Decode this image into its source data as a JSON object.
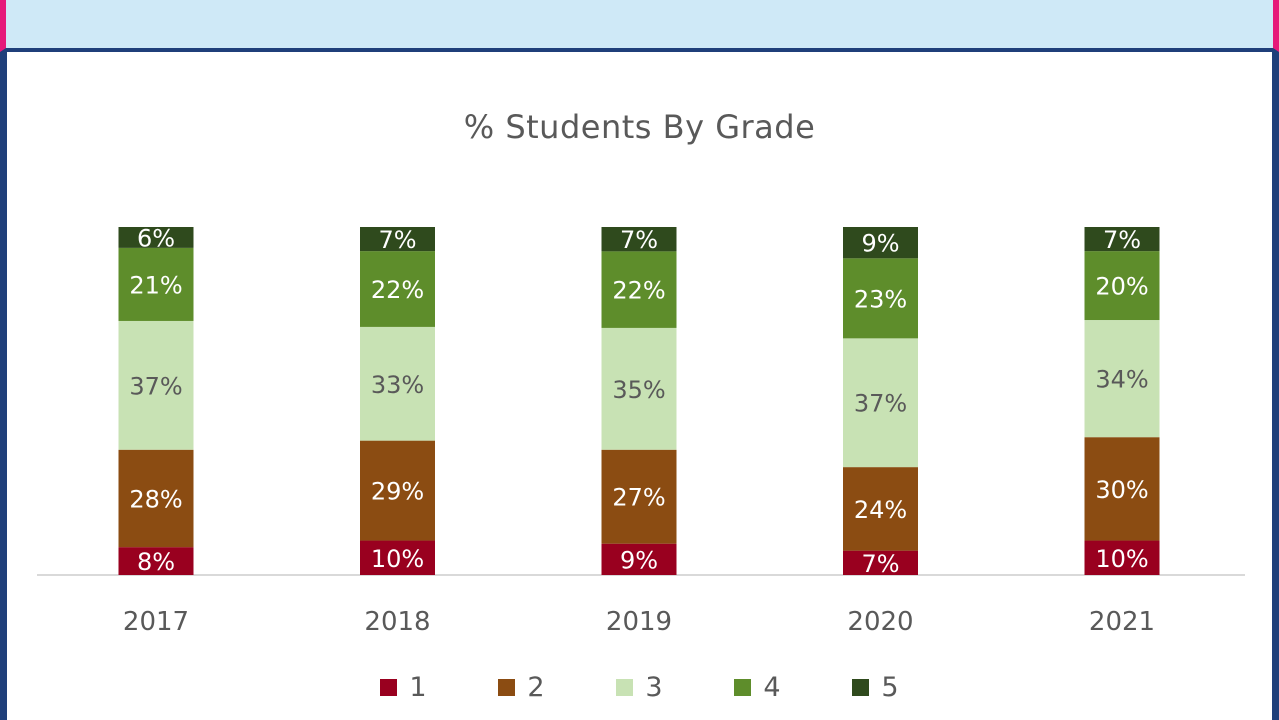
{
  "colors": {
    "grade1": "#99001f",
    "grade2": "#8b4c12",
    "grade3": "#c8e2b4",
    "grade4": "#5e8d2b",
    "grade5": "#2f4a1d",
    "axis": "#d9d9d9",
    "text": "#595959",
    "labelLight": "#ffffff",
    "labelDark": "#595959"
  },
  "chart_data": {
    "type": "bar",
    "stacked": true,
    "title": "% Students By Grade",
    "categories": [
      "2017",
      "2018",
      "2019",
      "2020",
      "2021"
    ],
    "series": [
      {
        "name": "1",
        "values": [
          8,
          10,
          9,
          7,
          10
        ],
        "labels": [
          "8%",
          "10%",
          "9%",
          "7%",
          "10%"
        ]
      },
      {
        "name": "2",
        "values": [
          28,
          29,
          27,
          24,
          30
        ],
        "labels": [
          "28%",
          "29%",
          "27%",
          "24%",
          "30%"
        ]
      },
      {
        "name": "3",
        "values": [
          37,
          33,
          35,
          37,
          34
        ],
        "labels": [
          "37%",
          "33%",
          "35%",
          "37%",
          "34%"
        ]
      },
      {
        "name": "4",
        "values": [
          21,
          22,
          22,
          23,
          20
        ],
        "labels": [
          "21%",
          "22%",
          "22%",
          "23%",
          "20%"
        ]
      },
      {
        "name": "5",
        "values": [
          6,
          7,
          7,
          9,
          7
        ],
        "labels": [
          "6%",
          "7%",
          "7%",
          "9%",
          "7%"
        ]
      }
    ],
    "ylim": [
      0,
      100
    ],
    "grid": false,
    "legend_position": "bottom"
  }
}
